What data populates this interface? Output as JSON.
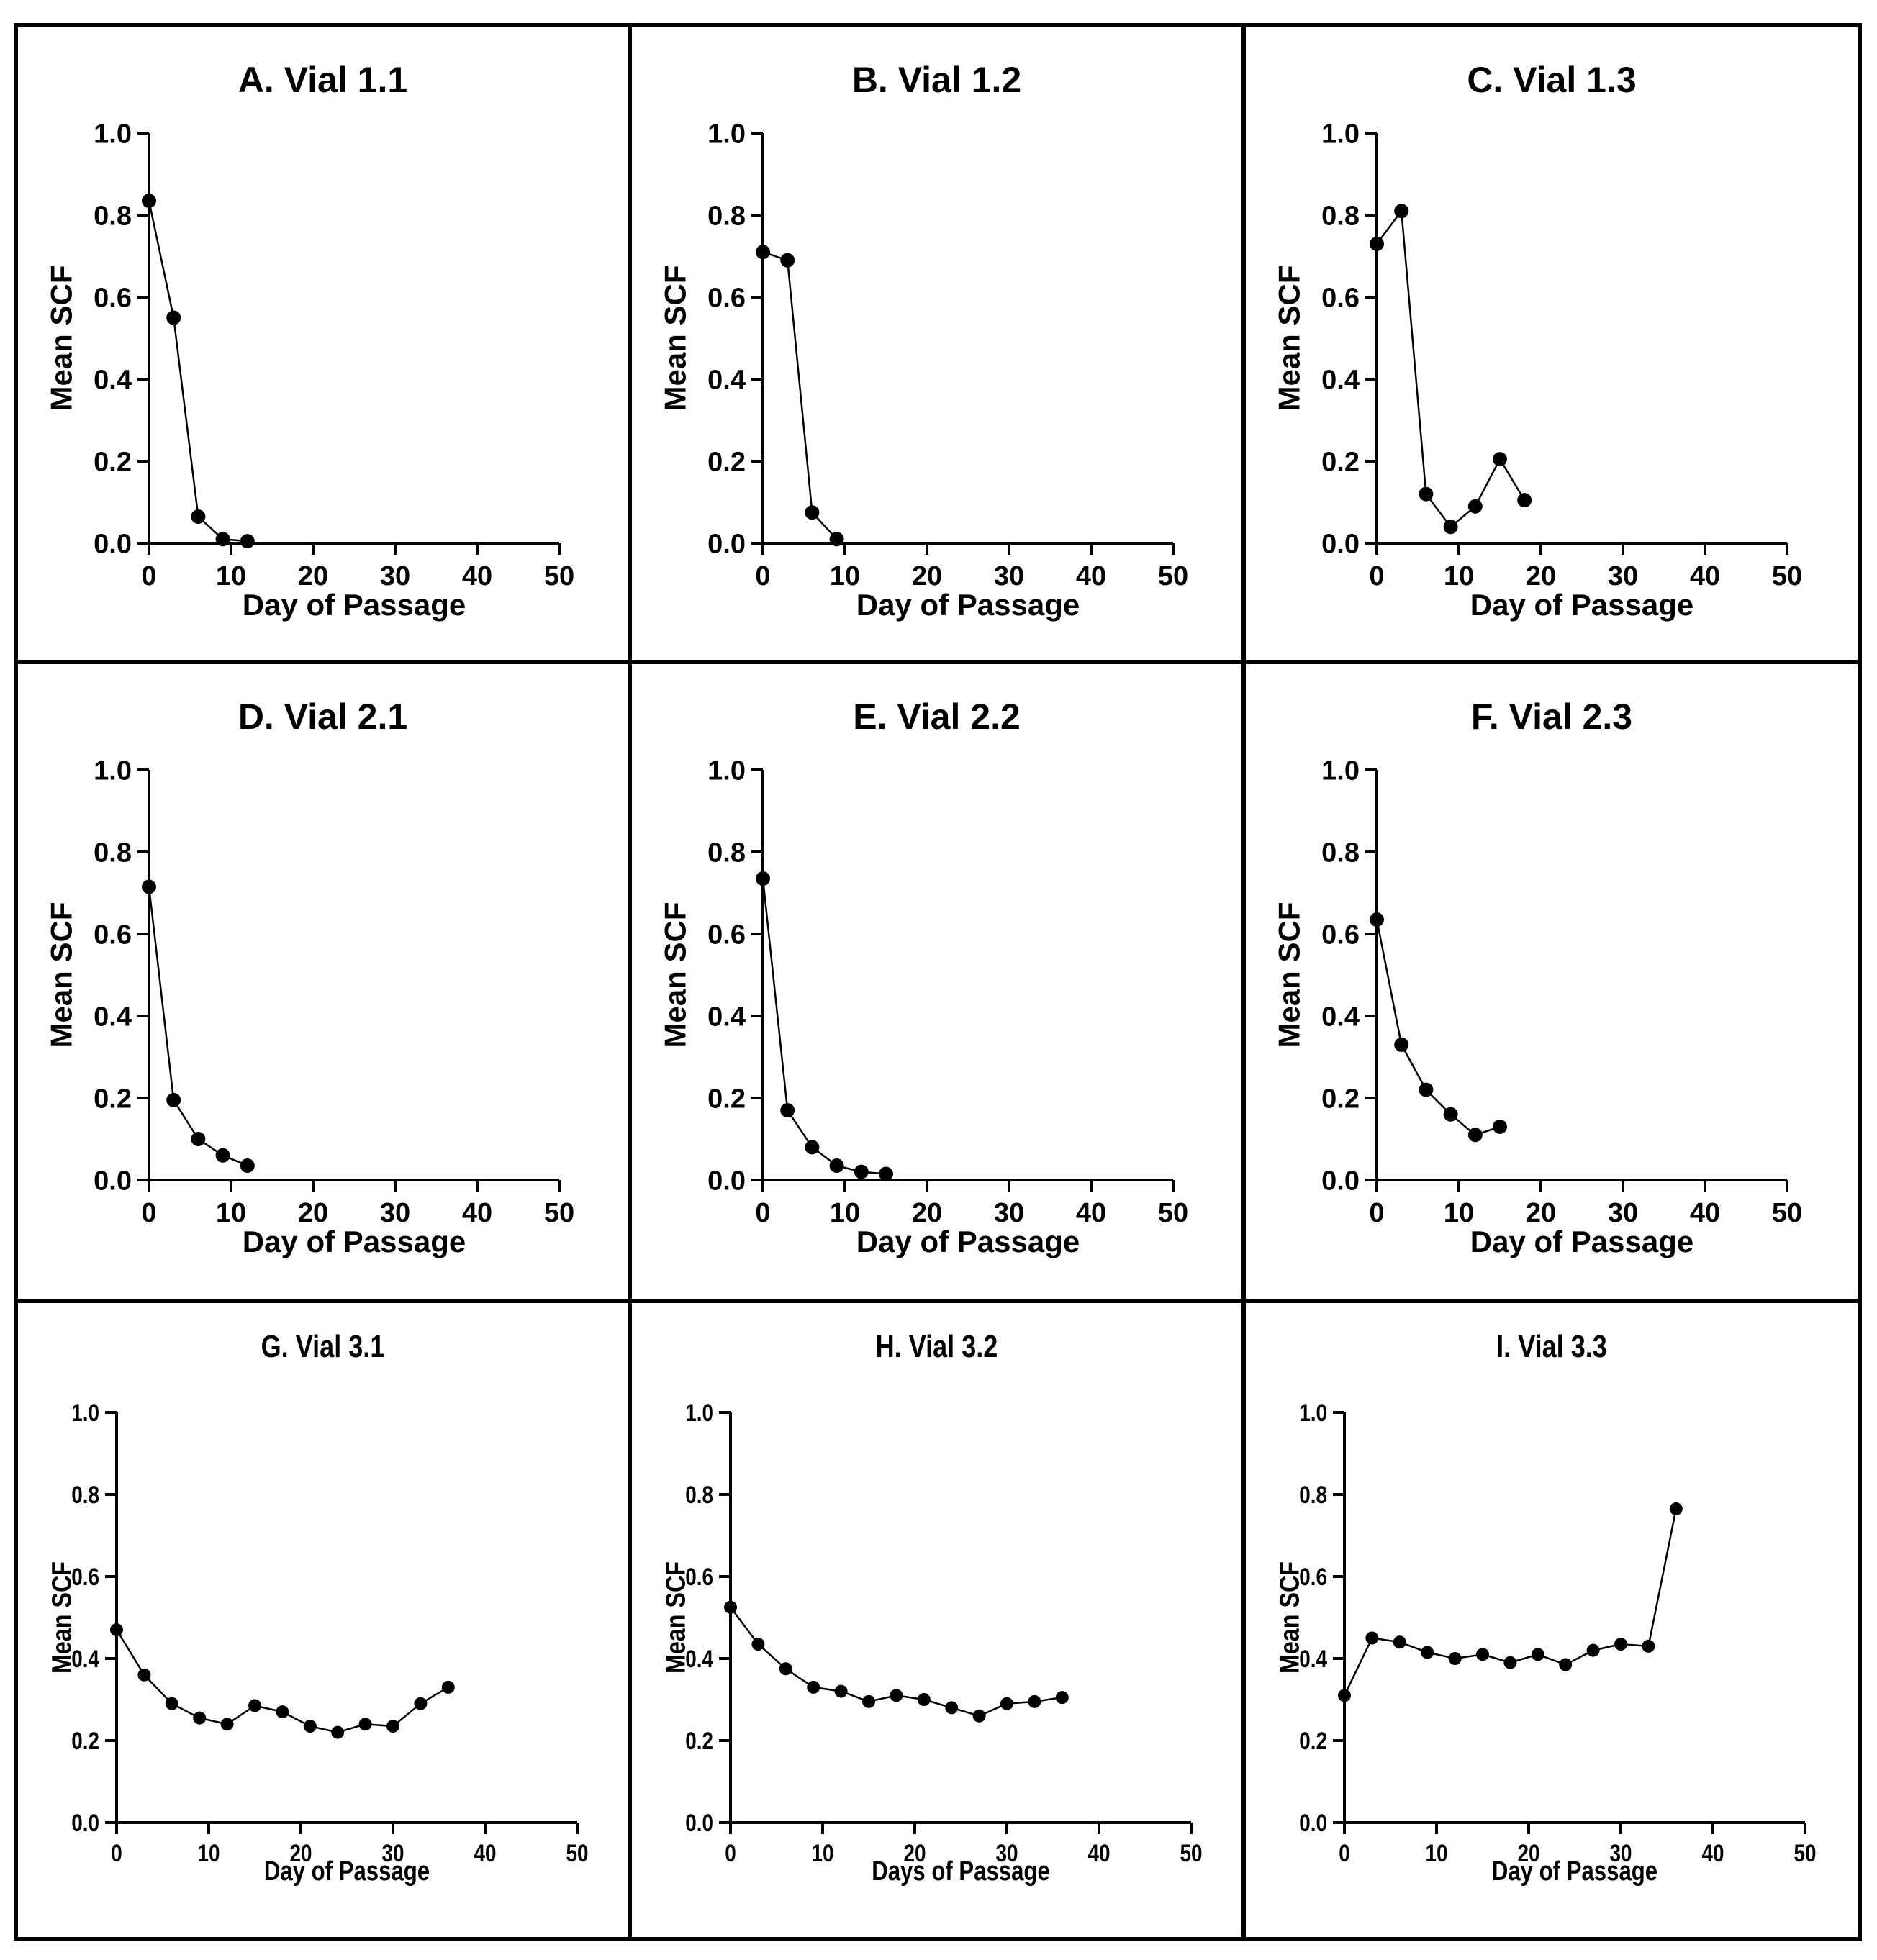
{
  "chart_data": [
    {
      "id": "A",
      "type": "line",
      "title": "A. Vial 1.1",
      "xlabel": "Day of Passage",
      "ylabel": "Mean SCF",
      "xlim": [
        0,
        50
      ],
      "ylim": [
        0,
        1
      ],
      "xticks": [
        0,
        10,
        20,
        30,
        40,
        50
      ],
      "yticks": [
        "0.0",
        "0.2",
        "0.4",
        "0.6",
        "0.8",
        "1.0"
      ],
      "x": [
        0,
        3,
        6,
        9,
        12
      ],
      "y": [
        0.835,
        0.55,
        0.065,
        0.01,
        0.005
      ]
    },
    {
      "id": "B",
      "type": "line",
      "title": "B. Vial 1.2",
      "xlabel": "Day of Passage",
      "ylabel": "Mean SCF",
      "xlim": [
        0,
        50
      ],
      "ylim": [
        0,
        1
      ],
      "xticks": [
        0,
        10,
        20,
        30,
        40,
        50
      ],
      "yticks": [
        "0.0",
        "0.2",
        "0.4",
        "0.6",
        "0.8",
        "1.0"
      ],
      "x": [
        0,
        3,
        6,
        9
      ],
      "y": [
        0.71,
        0.69,
        0.075,
        0.01
      ]
    },
    {
      "id": "C",
      "type": "line",
      "title": "C. Vial 1.3",
      "xlabel": "Day of Passage",
      "ylabel": "Mean SCF",
      "xlim": [
        0,
        50
      ],
      "ylim": [
        0,
        1
      ],
      "xticks": [
        0,
        10,
        20,
        30,
        40,
        50
      ],
      "yticks": [
        "0.0",
        "0.2",
        "0.4",
        "0.6",
        "0.8",
        "1.0"
      ],
      "x": [
        0,
        3,
        6,
        9,
        12,
        15,
        18
      ],
      "y": [
        0.73,
        0.81,
        0.12,
        0.04,
        0.09,
        0.205,
        0.105
      ]
    },
    {
      "id": "D",
      "type": "line",
      "title": "D. Vial 2.1",
      "xlabel": "Day of Passage",
      "ylabel": "Mean SCF",
      "xlim": [
        0,
        50
      ],
      "ylim": [
        0,
        1
      ],
      "xticks": [
        0,
        10,
        20,
        30,
        40,
        50
      ],
      "yticks": [
        "0.0",
        "0.2",
        "0.4",
        "0.6",
        "0.8",
        "1.0"
      ],
      "x": [
        0,
        3,
        6,
        9,
        12
      ],
      "y": [
        0.715,
        0.195,
        0.1,
        0.06,
        0.035
      ]
    },
    {
      "id": "E",
      "type": "line",
      "title": "E. Vial 2.2",
      "xlabel": "Day of Passage",
      "ylabel": "Mean SCF",
      "xlim": [
        0,
        50
      ],
      "ylim": [
        0,
        1
      ],
      "xticks": [
        0,
        10,
        20,
        30,
        40,
        50
      ],
      "yticks": [
        "0.0",
        "0.2",
        "0.4",
        "0.6",
        "0.8",
        "1.0"
      ],
      "x": [
        0,
        3,
        6,
        9,
        12,
        15
      ],
      "y": [
        0.735,
        0.17,
        0.08,
        0.035,
        0.02,
        0.015
      ]
    },
    {
      "id": "F",
      "type": "line",
      "title": "F. Vial 2.3",
      "xlabel": "Day of Passage",
      "ylabel": "Mean SCF",
      "xlim": [
        0,
        50
      ],
      "ylim": [
        0,
        1
      ],
      "xticks": [
        0,
        10,
        20,
        30,
        40,
        50
      ],
      "yticks": [
        "0.0",
        "0.2",
        "0.4",
        "0.6",
        "0.8",
        "1.0"
      ],
      "x": [
        0,
        3,
        6,
        9,
        12,
        15
      ],
      "y": [
        0.635,
        0.33,
        0.22,
        0.16,
        0.11,
        0.13
      ]
    },
    {
      "id": "G",
      "type": "line",
      "title": "G. Vial 3.1",
      "xlabel": "Day of Passage",
      "ylabel": "Mean SCF",
      "xlim": [
        0,
        50
      ],
      "ylim": [
        0,
        1
      ],
      "xticks": [
        0,
        10,
        20,
        30,
        40,
        50
      ],
      "yticks": [
        "0.0",
        "0.2",
        "0.4",
        "0.6",
        "0.8",
        "1.0"
      ],
      "x": [
        0,
        3,
        6,
        9,
        12,
        15,
        18,
        21,
        24,
        27,
        30,
        33,
        36
      ],
      "y": [
        0.47,
        0.36,
        0.29,
        0.255,
        0.24,
        0.285,
        0.27,
        0.235,
        0.22,
        0.24,
        0.235,
        0.29,
        0.33
      ]
    },
    {
      "id": "H",
      "type": "line",
      "title": "H. Vial 3.2",
      "xlabel": "Days of Passage",
      "ylabel": "Mean SCF",
      "xlim": [
        0,
        50
      ],
      "ylim": [
        0,
        1
      ],
      "xticks": [
        0,
        10,
        20,
        30,
        40,
        50
      ],
      "yticks": [
        "0.0",
        "0.2",
        "0.4",
        "0.6",
        "0.8",
        "1.0"
      ],
      "x": [
        0,
        3,
        6,
        9,
        12,
        15,
        18,
        21,
        24,
        27,
        30,
        33,
        36
      ],
      "y": [
        0.525,
        0.435,
        0.375,
        0.33,
        0.32,
        0.295,
        0.31,
        0.3,
        0.28,
        0.26,
        0.29,
        0.295,
        0.305
      ]
    },
    {
      "id": "I",
      "type": "line",
      "title": "I. Vial 3.3",
      "xlabel": "Day of Passage",
      "ylabel": "Mean SCF",
      "xlim": [
        0,
        50
      ],
      "ylim": [
        0,
        1
      ],
      "xticks": [
        0,
        10,
        20,
        30,
        40,
        50
      ],
      "yticks": [
        "0.0",
        "0.2",
        "0.4",
        "0.6",
        "0.8",
        "1.0"
      ],
      "x": [
        0,
        3,
        6,
        9,
        12,
        15,
        18,
        21,
        24,
        27,
        30,
        33,
        36
      ],
      "y": [
        0.31,
        0.45,
        0.44,
        0.415,
        0.4,
        0.41,
        0.39,
        0.41,
        0.385,
        0.42,
        0.435,
        0.43,
        0.765
      ]
    }
  ]
}
